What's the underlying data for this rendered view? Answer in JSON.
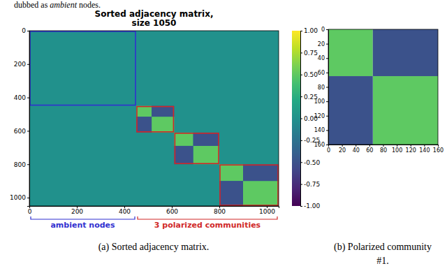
{
  "header_text": [
    "dubbed as ",
    "ambient",
    " nodes."
  ],
  "chart_data": [
    {
      "type": "heatmap",
      "title": "Sorted adjacency matrix,\nsize 1050",
      "caption": "(a) Sorted adjacency matrix.",
      "xlim": [
        0,
        1050
      ],
      "ylim": [
        0,
        1050
      ],
      "xticks": [
        0,
        200,
        400,
        600,
        800,
        1000
      ],
      "yticks": [
        0,
        200,
        400,
        600,
        800,
        1000
      ],
      "blocks": [
        {
          "rows": [
            0,
            1050
          ],
          "cols": [
            0,
            1050
          ],
          "value": 0
        },
        {
          "rows": [
            450,
            515
          ],
          "cols": [
            450,
            515
          ],
          "value": 0.5
        },
        {
          "rows": [
            515,
            610
          ],
          "cols": [
            515,
            610
          ],
          "value": 0.5
        },
        {
          "rows": [
            450,
            515
          ],
          "cols": [
            515,
            610
          ],
          "value": -0.5
        },
        {
          "rows": [
            515,
            610
          ],
          "cols": [
            450,
            515
          ],
          "value": -0.5
        },
        {
          "rows": [
            610,
            690
          ],
          "cols": [
            610,
            690
          ],
          "value": 0.5
        },
        {
          "rows": [
            690,
            800
          ],
          "cols": [
            690,
            800
          ],
          "value": 0.5
        },
        {
          "rows": [
            610,
            690
          ],
          "cols": [
            690,
            800
          ],
          "value": -0.5
        },
        {
          "rows": [
            690,
            800
          ],
          "cols": [
            610,
            690
          ],
          "value": -0.5
        },
        {
          "rows": [
            800,
            900
          ],
          "cols": [
            800,
            900
          ],
          "value": 0.5
        },
        {
          "rows": [
            900,
            1050
          ],
          "cols": [
            900,
            1050
          ],
          "value": 0.5
        },
        {
          "rows": [
            800,
            900
          ],
          "cols": [
            900,
            1050
          ],
          "value": -0.5
        },
        {
          "rows": [
            900,
            1050
          ],
          "cols": [
            800,
            900
          ],
          "value": -0.5
        }
      ],
      "color_range": [
        -1,
        1
      ],
      "color_ticks": [
        {
          "value": -1,
          "label": "-1.00"
        },
        -0.75,
        {
          "value": -0.5,
          "label": "-0.50"
        },
        -0.25,
        {
          "value": 0,
          "label": "0.00"
        },
        0.25,
        {
          "value": 0.5,
          "label": "0.50"
        },
        0.75,
        {
          "value": 1,
          "label": "1.00"
        }
      ],
      "boxes": [
        {
          "range": [
            0,
            450
          ],
          "color": "#3030d0"
        },
        {
          "range": [
            450,
            610
          ],
          "color": "#d02828"
        },
        {
          "range": [
            610,
            800
          ],
          "color": "#d02828"
        },
        {
          "range": [
            800,
            1050
          ],
          "color": "#d02828"
        }
      ],
      "annotations": [
        {
          "text": "ambient nodes",
          "range": [
            0,
            450
          ],
          "color": "#3030d0"
        },
        {
          "text": "3 polarized communities",
          "range": [
            450,
            1050
          ],
          "color": "#d02828"
        }
      ]
    },
    {
      "type": "heatmap",
      "caption": "(b) Polarized community\n#1.",
      "xlim": [
        0,
        160
      ],
      "ylim": [
        0,
        160
      ],
      "xticks": [
        0,
        20,
        40,
        60,
        80,
        100,
        120,
        140,
        160
      ],
      "yticks": [
        0,
        20,
        40,
        60,
        80,
        100,
        120,
        140,
        160
      ],
      "blocks": [
        {
          "rows": [
            0,
            65
          ],
          "cols": [
            0,
            65
          ],
          "value": 0.5
        },
        {
          "rows": [
            65,
            160
          ],
          "cols": [
            65,
            160
          ],
          "value": 0.5
        },
        {
          "rows": [
            0,
            65
          ],
          "cols": [
            65,
            160
          ],
          "value": -0.5
        },
        {
          "rows": [
            65,
            160
          ],
          "cols": [
            0,
            65
          ],
          "value": -0.5
        }
      ],
      "color_range": [
        -1,
        1
      ]
    }
  ]
}
